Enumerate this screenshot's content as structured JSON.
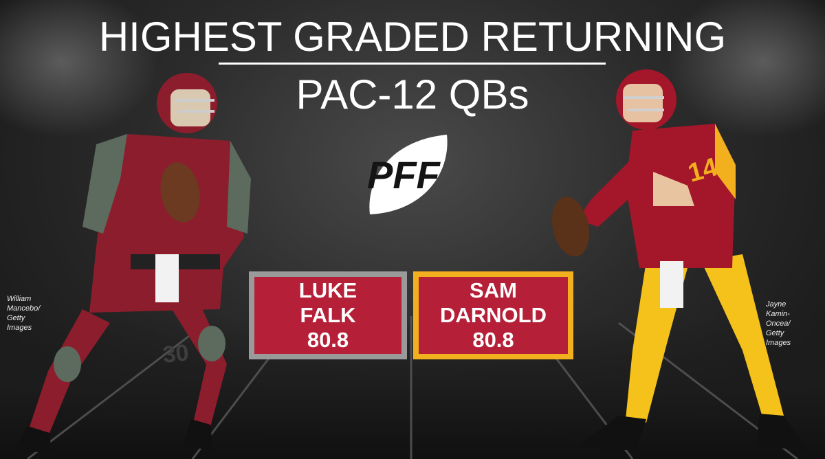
{
  "title": {
    "line1": "HIGHEST GRADED RETURNING",
    "line2": "PAC-12 QBs"
  },
  "logo": {
    "text": "PFF",
    "icon": "pff-football-logo-icon"
  },
  "players": [
    {
      "first_name": "LUKE",
      "last_name": "FALK",
      "grade": "80.8",
      "photo_credit": [
        "William",
        "Mancebo/",
        "Getty",
        "Images"
      ],
      "colors": {
        "box": "#b52038",
        "border": "#9a9a9a",
        "uniform": "#8c1d2c"
      }
    },
    {
      "first_name": "SAM",
      "last_name": "DARNOLD",
      "grade": "80.8",
      "photo_credit": [
        "Jayne",
        "Kamin-",
        "Oncea/",
        "Getty",
        "Images"
      ],
      "colors": {
        "box": "#b52038",
        "border": "#f2b01e",
        "uniform": "#a4162a",
        "pants": "#f5c21b"
      },
      "jersey_number": "14"
    }
  ]
}
